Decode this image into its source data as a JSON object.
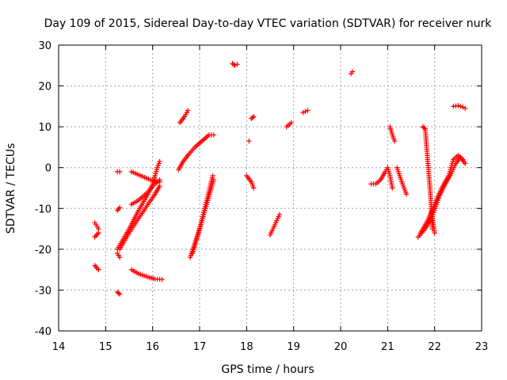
{
  "chart_data": {
    "type": "scatter",
    "title": "Day 109 of 2015, Sidereal Day-to-day VTEC variation (SDTVAR) for receiver nurk",
    "xlabel": "GPS time / hours",
    "ylabel": "SDTVAR / TECUs",
    "xlim": [
      14,
      23
    ],
    "ylim": [
      -40,
      30
    ],
    "xticks": [
      14,
      15,
      16,
      17,
      18,
      19,
      20,
      21,
      22,
      23
    ],
    "yticks": [
      -40,
      -30,
      -20,
      -10,
      0,
      10,
      20,
      30
    ],
    "grid": true,
    "marker": "+",
    "color": "#ff0000",
    "segments": [
      {
        "x": [
          14.77,
          14.85
        ],
        "y": [
          -13.5,
          -15.0
        ]
      },
      {
        "x": [
          14.77,
          14.85
        ],
        "y": [
          -17.0,
          -16.0
        ]
      },
      {
        "x": [
          14.77,
          14.85
        ],
        "y": [
          -24.0,
          -25.0
        ]
      },
      {
        "x": [
          15.25,
          15.3
        ],
        "y": [
          -1.0,
          -1.0
        ]
      },
      {
        "x": [
          15.25,
          15.3
        ],
        "y": [
          -10.5,
          -9.8
        ]
      },
      {
        "x": [
          15.25,
          15.3
        ],
        "y": [
          -21.0,
          -22.0
        ]
      },
      {
        "x": [
          15.25,
          15.3
        ],
        "y": [
          -30.5,
          -31.0
        ]
      },
      {
        "x": [
          15.25,
          15.5,
          15.7,
          15.9,
          16.0,
          16.05,
          16.1,
          16.15
        ],
        "y": [
          -20.0,
          -15.0,
          -10.5,
          -6.5,
          -4.0,
          -2.0,
          0.0,
          1.5
        ]
      },
      {
        "x": [
          15.3,
          15.5,
          15.7,
          15.9,
          16.05,
          16.15
        ],
        "y": [
          -20.0,
          -16.0,
          -12.5,
          -9.0,
          -6.5,
          -4.5
        ]
      },
      {
        "x": [
          15.55,
          15.7,
          15.9,
          16.05,
          16.15
        ],
        "y": [
          -9.0,
          -8.0,
          -6.0,
          -4.0,
          -3.0
        ]
      },
      {
        "x": [
          15.55,
          15.75,
          15.95,
          16.15
        ],
        "y": [
          -1.0,
          -2.0,
          -3.0,
          -3.5
        ]
      },
      {
        "x": [
          15.55,
          15.7,
          15.9,
          16.05,
          16.2
        ],
        "y": [
          -25.0,
          -26.0,
          -26.8,
          -27.3,
          -27.4
        ]
      },
      {
        "x": [
          16.55,
          16.65,
          16.75
        ],
        "y": [
          -0.5,
          1.5,
          3.0
        ]
      },
      {
        "x": [
          16.58,
          16.68,
          16.75
        ],
        "y": [
          11.0,
          12.5,
          14.0
        ]
      },
      {
        "x": [
          16.75,
          16.9,
          17.05,
          17.2,
          17.3
        ],
        "y": [
          3.0,
          5.0,
          6.5,
          8.0,
          8.0
        ]
      },
      {
        "x": [
          16.8,
          17.0,
          17.15,
          17.28
        ],
        "y": [
          -22.0,
          -15.0,
          -8.0,
          -2.0
        ]
      },
      {
        "x": [
          16.85,
          17.05,
          17.2,
          17.3
        ],
        "y": [
          -21.0,
          -13.0,
          -7.0,
          -3.0
        ]
      },
      {
        "x": [
          17.7,
          17.75,
          17.8
        ],
        "y": [
          25.5,
          25.0,
          25.3
        ]
      },
      {
        "x": [
          18.05
        ],
        "y": [
          6.5
        ]
      },
      {
        "x": [
          18.1,
          18.15
        ],
        "y": [
          12.0,
          12.5
        ]
      },
      {
        "x": [
          18.0,
          18.1,
          18.15
        ],
        "y": [
          -2.0,
          -3.5,
          -5.0
        ]
      },
      {
        "x": [
          18.5,
          18.6,
          18.7
        ],
        "y": [
          -16.5,
          -14.0,
          -11.5
        ]
      },
      {
        "x": [
          18.85,
          18.95
        ],
        "y": [
          10.0,
          11.0
        ]
      },
      {
        "x": [
          19.2,
          19.3
        ],
        "y": [
          13.5,
          14.0
        ]
      },
      {
        "x": [
          20.22,
          20.25
        ],
        "y": [
          23.0,
          23.5
        ]
      },
      {
        "x": [
          20.65,
          20.75,
          20.85,
          20.95,
          21.0,
          21.05,
          21.1
        ],
        "y": [
          -4.0,
          -4.0,
          -3.0,
          -1.0,
          0.0,
          -2.0,
          -5.0
        ]
      },
      {
        "x": [
          21.05,
          21.1,
          21.15
        ],
        "y": [
          10.0,
          8.0,
          6.5
        ]
      },
      {
        "x": [
          21.2,
          21.3,
          21.4
        ],
        "y": [
          0.0,
          -3.5,
          -6.5
        ]
      },
      {
        "x": [
          21.75,
          21.8,
          21.85,
          21.9,
          21.93,
          21.95
        ],
        "y": [
          10.0,
          9.5,
          2.0,
          -5.0,
          -10.0,
          -15.0
        ]
      },
      {
        "x": [
          21.95,
          22.0
        ],
        "y": [
          -12.0,
          -16.0
        ]
      },
      {
        "x": [
          21.65,
          21.8,
          21.95,
          22.1,
          22.25,
          22.35,
          22.45,
          22.55,
          22.65
        ],
        "y": [
          -17.0,
          -15.0,
          -12.0,
          -7.0,
          -3.5,
          -1.5,
          1.0,
          2.5,
          1.0
        ]
      },
      {
        "x": [
          21.7,
          21.85,
          22.0,
          22.15,
          22.3,
          22.4,
          22.5,
          22.6
        ],
        "y": [
          -16.0,
          -13.0,
          -9.0,
          -5.0,
          -2.0,
          2.0,
          3.0,
          2.0
        ]
      },
      {
        "x": [
          22.4,
          22.5,
          22.6,
          22.65
        ],
        "y": [
          15.0,
          15.2,
          14.8,
          14.5
        ]
      }
    ]
  }
}
